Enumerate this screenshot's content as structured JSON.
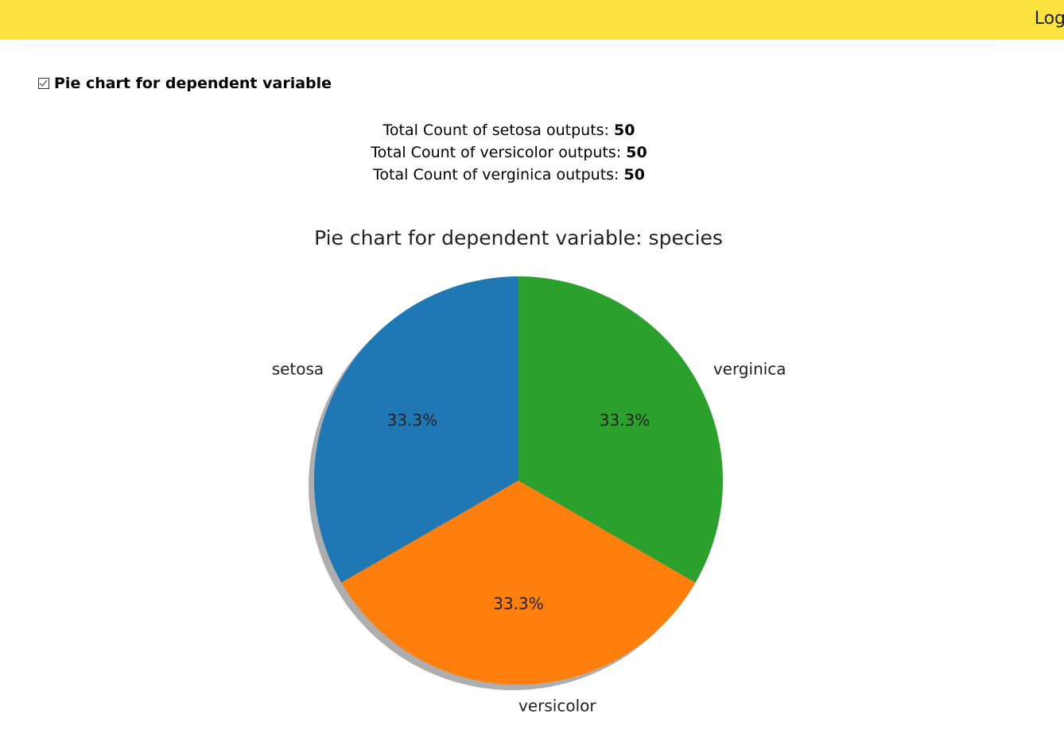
{
  "header": {
    "login_label": "Log"
  },
  "section": {
    "checked": true,
    "title": "Pie chart for dependent variable"
  },
  "counts": [
    {
      "prefix": "Total Count of setosa outputs:",
      "value": "50"
    },
    {
      "prefix": "Total Count of versicolor outputs:",
      "value": "50"
    },
    {
      "prefix": "Total Count of verginica outputs:",
      "value": "50"
    }
  ],
  "colors": {
    "header_bg": "#fbe23f",
    "setosa": "#1f77b4",
    "versicolor": "#ff7f0e",
    "verginica": "#2ca02c"
  },
  "chart_data": {
    "type": "pie",
    "title": "Pie chart for dependent variable: species",
    "shadow": true,
    "start_angle_deg": 90,
    "slices": [
      {
        "label": "setosa",
        "value": 50,
        "pct_label": "33.3%",
        "color": "#1f77b4"
      },
      {
        "label": "versicolor",
        "value": 50,
        "pct_label": "33.3%",
        "color": "#ff7f0e"
      },
      {
        "label": "verginica",
        "value": 50,
        "pct_label": "33.3%",
        "color": "#2ca02c"
      }
    ]
  }
}
